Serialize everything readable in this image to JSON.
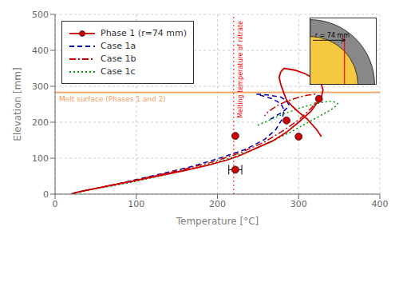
{
  "chart_data": {
    "type": "line",
    "xlabel": "Temperature [°C]",
    "ylabel": "Elevation [mm]",
    "xlim": [
      0,
      400
    ],
    "ylim": [
      0,
      500
    ],
    "xticks": [
      0,
      100,
      200,
      300,
      400
    ],
    "yticks": [
      0,
      100,
      200,
      300,
      400,
      500
    ],
    "grid": true,
    "legend": "upper left",
    "series": [
      {
        "name": "Phase 1 (r=74 mm)",
        "color": "#cc0000",
        "line_style": "solid",
        "marker": "circle",
        "x": [
          20,
          25,
          35,
          50,
          70,
          95,
          125,
          158,
          188,
          212,
          225,
          235,
          248,
          268,
          285,
          300,
          315,
          322,
          328,
          330,
          328,
          320,
          308,
          295,
          282,
          278,
          276,
          278,
          282,
          285,
          292,
          300,
          310,
          322,
          328
        ],
        "values": [
          0,
          4,
          9,
          16,
          25,
          36,
          50,
          65,
          80,
          95,
          105,
          115,
          128,
          148,
          172,
          200,
          230,
          252,
          270,
          290,
          305,
          320,
          335,
          345,
          350,
          340,
          325,
          305,
          280,
          262,
          245,
          228,
          210,
          180,
          160
        ],
        "markers": {
          "x": [
            222,
            222,
            285,
            300,
            325
          ],
          "values": [
            68,
            162,
            205,
            160,
            265
          ]
        }
      },
      {
        "name": "Case 1a",
        "color": "#0000bb",
        "line_style": "dashed",
        "x": [
          20,
          25,
          35,
          50,
          70,
          95,
          128,
          165,
          200,
          235,
          258,
          272,
          280,
          282,
          278,
          268,
          258,
          248,
          252,
          265,
          278,
          285,
          288,
          285,
          280,
          272,
          265
        ],
        "values": [
          0,
          4,
          9,
          16,
          25,
          38,
          55,
          75,
          98,
          125,
          152,
          180,
          210,
          235,
          252,
          265,
          272,
          278,
          278,
          275,
          270,
          260,
          248,
          238,
          228,
          218,
          208
        ]
      },
      {
        "name": "Case 1b",
        "color": "#cc0000",
        "line_style": "dashdot",
        "x": [
          20,
          25,
          35,
          50,
          70,
          95,
          125,
          160,
          195,
          228,
          258,
          282,
          302,
          315,
          322,
          325,
          320,
          310,
          298,
          285,
          275,
          268,
          262,
          258
        ],
        "values": [
          0,
          4,
          9,
          16,
          25,
          37,
          52,
          70,
          90,
          115,
          145,
          178,
          210,
          238,
          258,
          272,
          278,
          275,
          268,
          258,
          248,
          238,
          228,
          218
        ]
      },
      {
        "name": "Case 1c",
        "color": "#009900",
        "line_style": "dotted",
        "x": [
          20,
          25,
          35,
          48,
          68,
          92,
          120,
          152,
          185,
          215,
          242,
          268,
          292,
          312,
          328,
          340,
          346,
          348,
          345,
          338,
          328,
          315,
          302,
          290,
          278,
          268,
          258,
          248
        ],
        "values": [
          0,
          3,
          8,
          14,
          22,
          32,
          46,
          62,
          80,
          100,
          122,
          148,
          175,
          200,
          220,
          235,
          245,
          252,
          256,
          258,
          255,
          248,
          240,
          230,
          220,
          210,
          200,
          190
        ]
      }
    ],
    "error_bars": [
      {
        "x": 222,
        "y": 68,
        "xerr": 8
      }
    ],
    "annotations": [
      {
        "type": "hline",
        "y": 283,
        "band": [
          280,
          286
        ],
        "text": "Melt surface (Phases 1 and 2)",
        "color": "#f4a060"
      },
      {
        "type": "vline",
        "x": 220,
        "text": "Melting temperature of nitrate",
        "color": "red"
      },
      {
        "type": "inset",
        "text": "r = 74 mm",
        "colors": [
          "#888888",
          "#f5c842",
          "red"
        ]
      }
    ]
  }
}
